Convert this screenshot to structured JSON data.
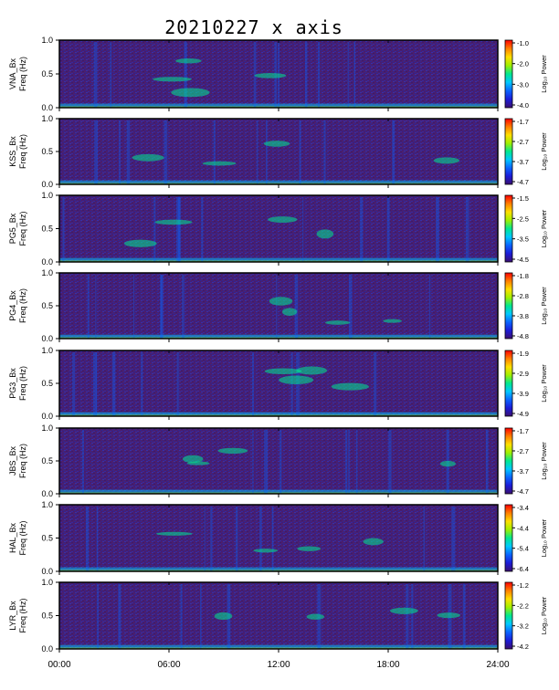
{
  "title": "20210227 x axis",
  "stamp": "",
  "colorbar_label": "Log₁₀ Power",
  "colors": {
    "background": "#4b1f6e",
    "colormap": [
      "#3b0f70",
      "#1c1cd8",
      "#0a64ff",
      "#00c8ff",
      "#00e890",
      "#a0f000",
      "#ffe000",
      "#ff8000",
      "#ff0000"
    ]
  },
  "chart_data": [
    {
      "type": "heatmap",
      "station": "VNA",
      "ylabel": "VNA_Bx\nFreq (Hz)",
      "yticks": [
        "0.0",
        "0.5",
        "1.0"
      ],
      "ylim": [
        0,
        1.0
      ],
      "colorbar_ticks": [
        "-1.0",
        "-2.0",
        "-3.0",
        "-4.0"
      ],
      "clim": [
        -4.0,
        -1.0
      ]
    },
    {
      "type": "heatmap",
      "station": "KSS",
      "ylabel": "KSS_Bx\nFreq (Hz)",
      "yticks": [
        "0.0",
        "0.5",
        "1.0"
      ],
      "ylim": [
        0,
        1.0
      ],
      "colorbar_ticks": [
        "-1.7",
        "-2.7",
        "-3.7",
        "-4.7"
      ],
      "clim": [
        -4.7,
        -1.7
      ]
    },
    {
      "type": "heatmap",
      "station": "PG5",
      "ylabel": "PG5_Bx\nFreq (Hz)",
      "yticks": [
        "0.0",
        "0.5",
        "1.0"
      ],
      "ylim": [
        0,
        1.0
      ],
      "colorbar_ticks": [
        "-1.5",
        "-2.5",
        "-3.5",
        "-4.5"
      ],
      "clim": [
        -4.5,
        -1.5
      ]
    },
    {
      "type": "heatmap",
      "station": "PG4",
      "ylabel": "PG4_Bx\nFreq (Hz)",
      "yticks": [
        "0.0",
        "0.5",
        "1.0"
      ],
      "ylim": [
        0,
        1.0
      ],
      "colorbar_ticks": [
        "-1.8",
        "-2.8",
        "-3.8",
        "-4.8"
      ],
      "clim": [
        -4.8,
        -1.8
      ]
    },
    {
      "type": "heatmap",
      "station": "PG3",
      "ylabel": "PG3_Bx\nFreq (Hz)",
      "yticks": [
        "0.0",
        "0.5",
        "1.0"
      ],
      "ylim": [
        0,
        1.0
      ],
      "colorbar_ticks": [
        "-1.9",
        "-2.9",
        "-3.9",
        "-4.9"
      ],
      "clim": [
        -4.9,
        -1.9
      ]
    },
    {
      "type": "heatmap",
      "station": "JBS",
      "ylabel": "JBS_Bx\nFreq (Hz)",
      "yticks": [
        "0.0",
        "0.5",
        "1.0"
      ],
      "ylim": [
        0,
        1.0
      ],
      "colorbar_ticks": [
        "-1.7",
        "-2.7",
        "-3.7",
        "-4.7"
      ],
      "clim": [
        -4.7,
        -1.7
      ]
    },
    {
      "type": "heatmap",
      "station": "HAL",
      "ylabel": "HAL_Bx\nFreq (Hz)",
      "yticks": [
        "0.0",
        "0.5",
        "1.0"
      ],
      "ylim": [
        0,
        1.0
      ],
      "colorbar_ticks": [
        "-3.4",
        "-4.4",
        "-5.4",
        "-6.4"
      ],
      "clim": [
        -6.4,
        -3.4
      ]
    },
    {
      "type": "heatmap",
      "station": "LYR",
      "ylabel": "LYR_Bx\nFreq (Hz)",
      "yticks": [
        "0.0",
        "0.5",
        "1.0"
      ],
      "ylim": [
        0,
        1.0
      ],
      "colorbar_ticks": [
        "-1.2",
        "-2.2",
        "-3.2",
        "-4.2"
      ],
      "clim": [
        -4.2,
        -1.2
      ]
    }
  ],
  "xaxis": {
    "ticks": [
      "00:00",
      "06:00",
      "12:00",
      "18:00",
      "24:00"
    ]
  }
}
